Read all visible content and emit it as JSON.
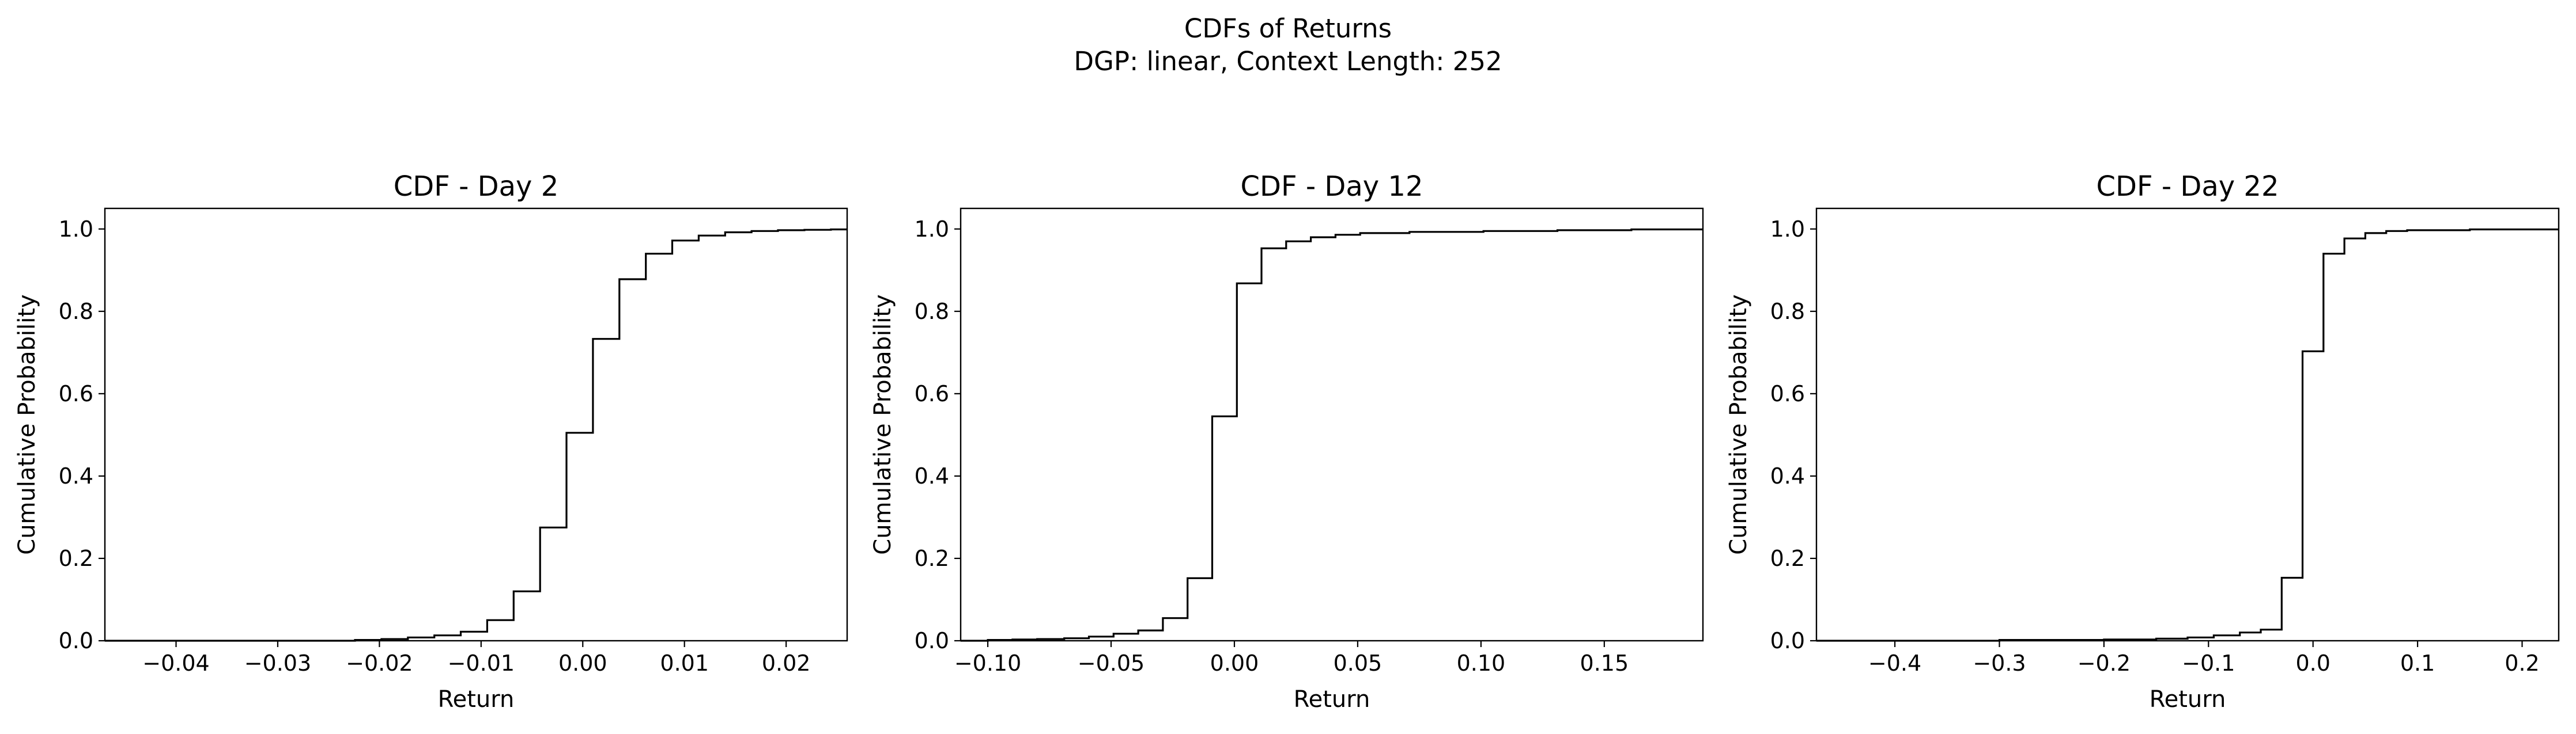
{
  "figure": {
    "title_line1": "CDFs of Returns",
    "title_line2": "DGP: linear, Context Length: 252"
  },
  "chart_data": [
    {
      "type": "line",
      "subtype": "step",
      "title": "CDF - Day 2",
      "xlabel": "Return",
      "ylabel": "Cumulative Probability",
      "xlim": [
        -0.047,
        0.026
      ],
      "ylim": [
        0,
        1.05
      ],
      "xticks": [
        -0.04,
        -0.03,
        -0.02,
        -0.01,
        0.0,
        0.01,
        0.02
      ],
      "xtick_labels": [
        "−0.04",
        "−0.03",
        "−0.02",
        "−0.01",
        "0.00",
        "0.01",
        "0.02"
      ],
      "yticks": [
        0,
        0.2,
        0.4,
        0.6,
        0.8,
        1.0
      ],
      "ytick_labels": [
        "0.0",
        "0.2",
        "0.4",
        "0.6",
        "0.8",
        "1.0"
      ],
      "grid": false,
      "x": [
        -0.047,
        -0.0224,
        -0.0198,
        -0.0172,
        -0.0146,
        -0.012,
        -0.0094,
        -0.0068,
        -0.0042,
        -0.0016,
        0.001,
        0.0036,
        0.0062,
        0.0088,
        0.0114,
        0.014,
        0.0166,
        0.0192,
        0.0218,
        0.0244,
        0.026
      ],
      "y": [
        0.0,
        0.002,
        0.004,
        0.008,
        0.013,
        0.022,
        0.05,
        0.12,
        0.275,
        0.505,
        0.733,
        0.878,
        0.94,
        0.972,
        0.984,
        0.992,
        0.995,
        0.997,
        0.998,
        0.999,
        0.999
      ]
    },
    {
      "type": "line",
      "subtype": "step",
      "title": "CDF - Day 12",
      "xlabel": "Return",
      "ylabel": "Cumulative Probability",
      "xlim": [
        -0.111,
        0.19
      ],
      "ylim": [
        0,
        1.05
      ],
      "xticks": [
        -0.1,
        -0.05,
        0.0,
        0.05,
        0.1,
        0.15
      ],
      "xtick_labels": [
        "−0.10",
        "−0.05",
        "0.00",
        "0.05",
        "0.10",
        "0.15"
      ],
      "yticks": [
        0,
        0.2,
        0.4,
        0.6,
        0.8,
        1.0
      ],
      "ytick_labels": [
        "0.0",
        "0.2",
        "0.4",
        "0.6",
        "0.8",
        "1.0"
      ],
      "grid": false,
      "x": [
        -0.111,
        -0.1,
        -0.09,
        -0.08,
        -0.069,
        -0.059,
        -0.049,
        -0.039,
        -0.029,
        -0.019,
        -0.009,
        0.001,
        0.011,
        0.021,
        0.031,
        0.041,
        0.051,
        0.071,
        0.101,
        0.131,
        0.161,
        0.19
      ],
      "y": [
        0.0,
        0.002,
        0.003,
        0.004,
        0.006,
        0.01,
        0.017,
        0.025,
        0.055,
        0.152,
        0.545,
        0.868,
        0.953,
        0.97,
        0.98,
        0.986,
        0.99,
        0.993,
        0.995,
        0.997,
        0.999,
        0.999
      ]
    },
    {
      "type": "line",
      "subtype": "step",
      "title": "CDF - Day 22",
      "xlabel": "Return",
      "ylabel": "Cumulative Probability",
      "xlim": [
        -0.475,
        0.235
      ],
      "ylim": [
        0,
        1.05
      ],
      "xticks": [
        -0.4,
        -0.3,
        -0.2,
        -0.1,
        0.0,
        0.1,
        0.2
      ],
      "xtick_labels": [
        "−0.4",
        "−0.3",
        "−0.2",
        "−0.1",
        "0.0",
        "0.1",
        "0.2"
      ],
      "yticks": [
        0,
        0.2,
        0.4,
        0.6,
        0.8,
        1.0
      ],
      "ytick_labels": [
        "0.0",
        "0.2",
        "0.4",
        "0.6",
        "0.8",
        "1.0"
      ],
      "grid": false,
      "x": [
        -0.475,
        -0.3,
        -0.2,
        -0.15,
        -0.12,
        -0.095,
        -0.07,
        -0.05,
        -0.03,
        -0.01,
        0.01,
        0.03,
        0.05,
        0.07,
        0.09,
        0.15,
        0.235
      ],
      "y": [
        0.0,
        0.002,
        0.003,
        0.005,
        0.008,
        0.013,
        0.02,
        0.027,
        0.153,
        0.703,
        0.94,
        0.977,
        0.99,
        0.995,
        0.997,
        0.999,
        0.999
      ]
    }
  ]
}
